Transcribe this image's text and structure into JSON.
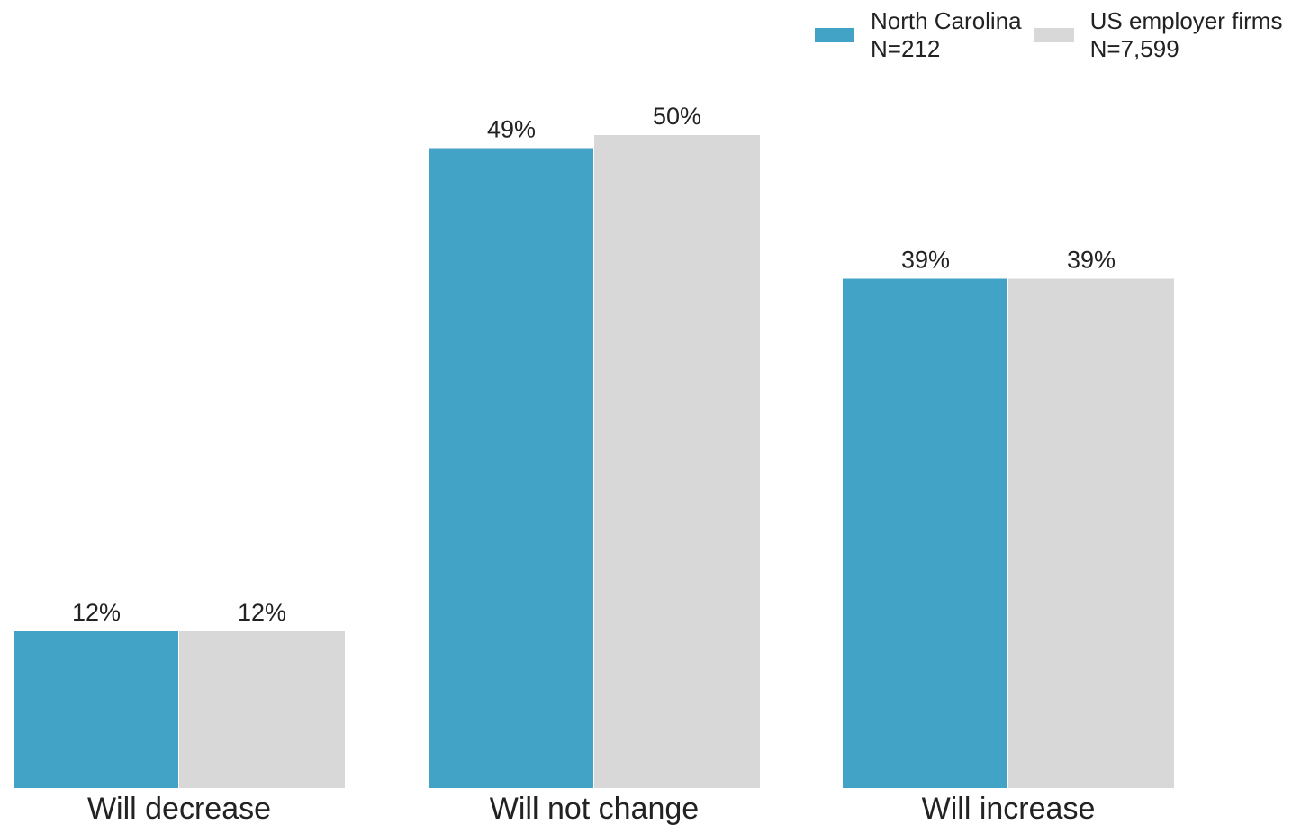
{
  "chart_data": {
    "type": "bar",
    "categories": [
      "Will decrease",
      "Will not change",
      "Will increase"
    ],
    "series": [
      {
        "name": "North Carolina",
        "sublabel": "N=212",
        "color": "#43a3c7",
        "values": [
          12,
          49,
          39
        ],
        "labels": [
          "12%",
          "49%",
          "39%"
        ]
      },
      {
        "name": "US employer firms",
        "sublabel": "N=7,599",
        "color": "#d8d8d8",
        "values": [
          12,
          50,
          39
        ],
        "labels": [
          "12%",
          "50%",
          "39%"
        ]
      }
    ],
    "ylim": [
      0,
      50
    ],
    "grid": false,
    "legend_position": "top-right",
    "title": "",
    "xlabel": "",
    "ylabel": ""
  }
}
